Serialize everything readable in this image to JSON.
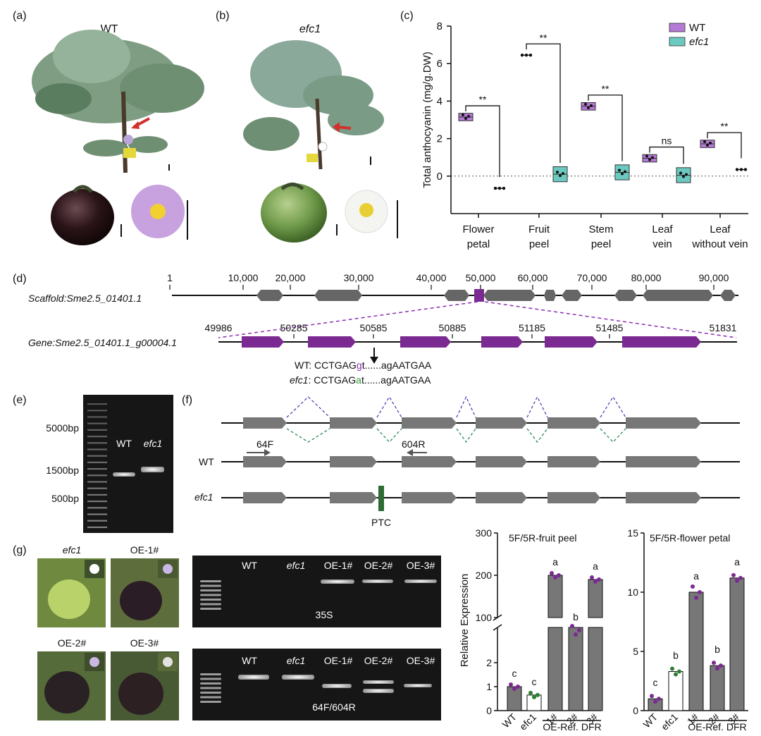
{
  "panels": {
    "a": {
      "label": "(a)",
      "title": "WT"
    },
    "b": {
      "label": "(b)",
      "title": "efc1"
    },
    "c": {
      "label": "(c)"
    },
    "d": {
      "label": "(d)"
    },
    "e": {
      "label": "(e)"
    },
    "f": {
      "label": "(f)"
    },
    "g": {
      "label": "(g)"
    }
  },
  "panel_d": {
    "scaffold_label": "Scaffold:Sme2.5_01401.1",
    "scaffold_ticks": [
      "1",
      "10,000",
      "20,000",
      "30,000",
      "40,000",
      "50,000",
      "60,000",
      "70,000",
      "80,000",
      "90,000"
    ],
    "gene_label": "Gene:Sme2.5_01401.1_g00004.1",
    "gene_ticks": [
      "49986",
      "50285",
      "50585",
      "50885",
      "51185",
      "51485",
      "51831"
    ],
    "wt_prefix": "WT: CCTGAG",
    "wt_mut": "g",
    "wt_suffix": "t......agAATGAA",
    "efc1_prefix": "efc1",
    "efc1_seq": ": CCTGAG",
    "efc1_mut": "a",
    "efc1_suffix": "t......agAATGAA"
  },
  "panel_e": {
    "markers": [
      "5000bp",
      "1500bp",
      "500bp"
    ],
    "lanes": [
      "WT",
      "efc1"
    ]
  },
  "panel_f": {
    "primer_f": "64F",
    "primer_r": "604R",
    "row_wt": "WT",
    "row_efc1": "efc1",
    "ptc": "PTC"
  },
  "panel_g": {
    "photo_labels": [
      "efc1",
      "OE-1#",
      "OE-2#",
      "OE-3#"
    ],
    "gel_lanes": [
      "WT",
      "efc1",
      "OE-1#",
      "OE-2#",
      "OE-3#"
    ],
    "gel1_label": "35S",
    "gel2_label": "64F/604R"
  },
  "colors": {
    "wt": "#b57ad6",
    "efc1": "#6cc9c0",
    "purple": "#7b2a91",
    "green": "#2e7d32",
    "grey": "#777777"
  },
  "chart_data": [
    {
      "type": "box",
      "ylabel": "Total anthocyanin (mg/g.DW)",
      "ylim": [
        -2,
        8
      ],
      "yticks": [
        "8",
        "6",
        "4",
        "2",
        "0"
      ],
      "categories": [
        "Flower petal",
        "Fruit peel",
        "Stem peel",
        "Leaf vein",
        "Leaf without vein"
      ],
      "category_lines": [
        [
          "Flower",
          "petal"
        ],
        [
          "Fruit",
          "peel"
        ],
        [
          "Stem",
          "peel"
        ],
        [
          "Leaf",
          "vein"
        ],
        [
          "Leaf",
          "without vein"
        ]
      ],
      "series": [
        {
          "name": "WT",
          "values": [
            3.15,
            6.45,
            3.72,
            0.95,
            1.72
          ]
        },
        {
          "name": "efc1",
          "values": [
            -0.65,
            0.1,
            0.2,
            0.05,
            0.35
          ]
        }
      ],
      "significance": [
        "**",
        "**",
        "**",
        "ns",
        "**"
      ],
      "legend_position": "top-right"
    },
    {
      "type": "bar",
      "title": "5F/5R-fruit peel",
      "ylabel": "Relative  Expression",
      "categories": [
        "WT",
        "efc1",
        "1#",
        "2#",
        "3#"
      ],
      "group_label": "OE-Ref. DFR",
      "values": [
        1.0,
        0.65,
        200,
        70,
        190
      ],
      "letters": [
        "c",
        "c",
        "a",
        "b",
        "a"
      ],
      "yticks_upper": [
        "300",
        "200",
        "100"
      ],
      "yticks_lower": [
        "2",
        "1",
        "0"
      ]
    },
    {
      "type": "bar",
      "title": "5F/5R-flower petal",
      "categories": [
        "WT",
        "efc1",
        "1#",
        "2#",
        "3#"
      ],
      "group_label": "OE-Ref. DFR",
      "values": [
        1.0,
        3.3,
        10.0,
        3.8,
        11.2
      ],
      "letters": [
        "c",
        "b",
        "a",
        "b",
        "a"
      ],
      "ylim": [
        0,
        15
      ],
      "yticks": [
        "15",
        "10",
        "5",
        "0"
      ]
    }
  ]
}
